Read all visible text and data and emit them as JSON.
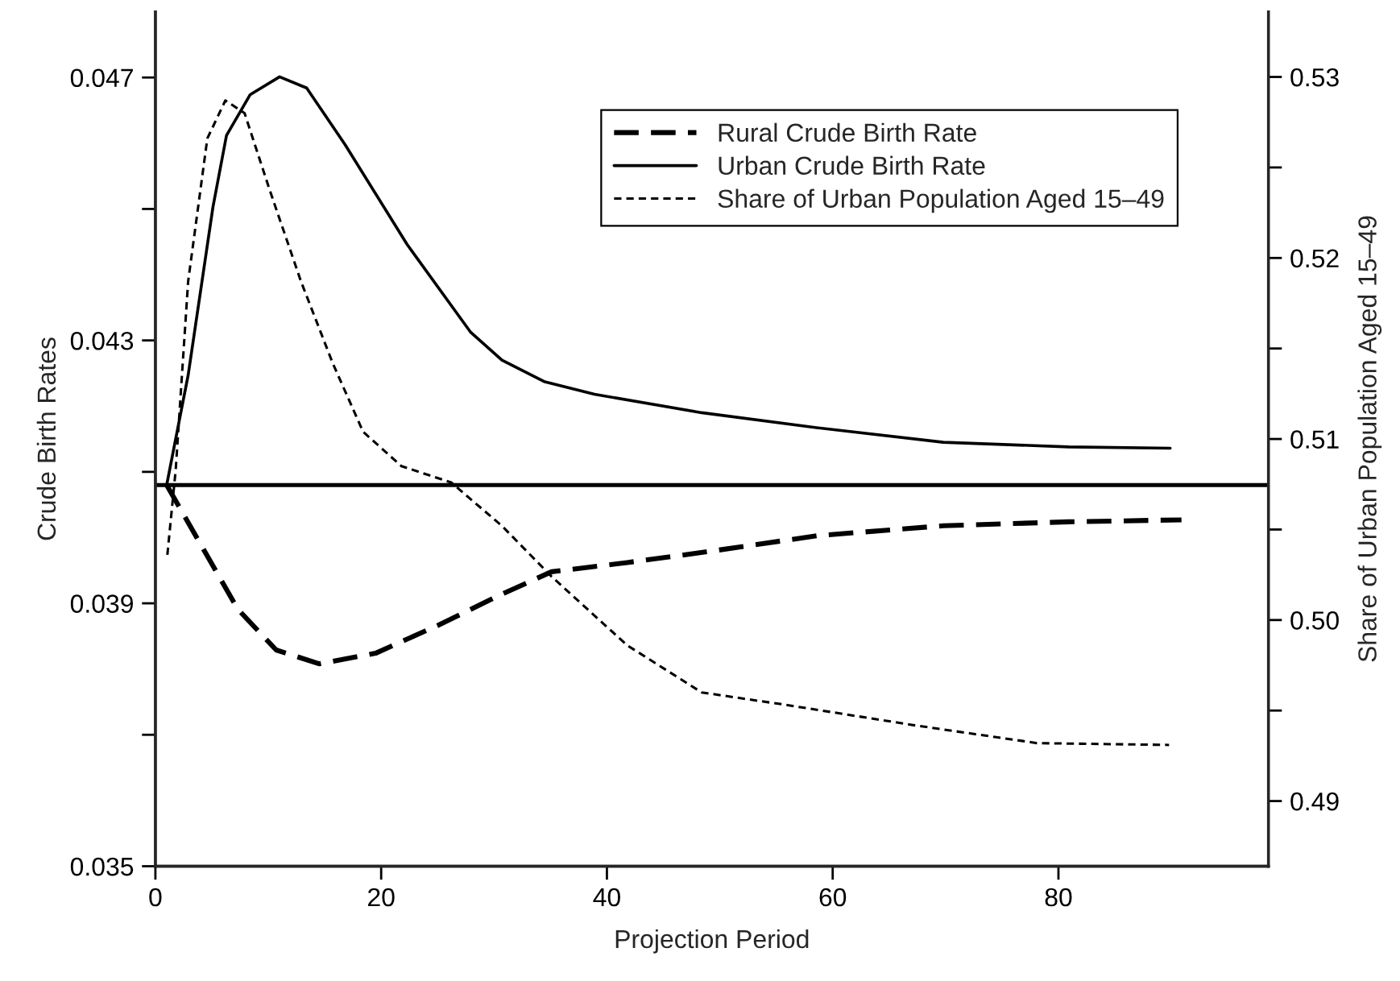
{
  "chart_data": {
    "type": "line",
    "xlabel": "Projection Period",
    "ylabel": "Crude Birth Rates",
    "y2label": "Share of Urban Population Aged 15–49",
    "xlim": [
      0,
      98.6
    ],
    "xticks": [
      0,
      20,
      40,
      60,
      80
    ],
    "ylim": [
      0.035,
      0.048
    ],
    "yticks": [
      0.035,
      {
        "value": 0.037,
        "label": null
      },
      0.039,
      {
        "value": 0.041,
        "label": null
      },
      0.043,
      {
        "value": 0.045,
        "label": null
      },
      0.047
    ],
    "y2lim": [
      0.4864,
      0.5336
    ],
    "y2ticks": [
      0.49,
      {
        "value": 0.495,
        "label": null
      },
      {
        "value": 0.5,
        "label": "0.50"
      },
      {
        "value": 0.505,
        "label": null
      },
      0.51,
      {
        "value": 0.515,
        "label": null
      },
      0.52,
      {
        "value": 0.525,
        "label": null
      },
      0.53
    ],
    "legend": "top right",
    "grid": false,
    "ref_lines": [
      {
        "axis": "y",
        "value": 0.0408,
        "color": "#000000",
        "line_style": "solid"
      }
    ],
    "series": [
      {
        "name": "Rural Crude Birth Rate",
        "color": "#000000",
        "line_style": "dashed",
        "axis": "y",
        "x": [
          1,
          4.0,
          7.3,
          10.7,
          14.5,
          19.5,
          25.1,
          30.7,
          35.1,
          41.8,
          49.1,
          58.7,
          69.8,
          80.9,
          90.9
        ],
        "values": [
          0.0408,
          0.0399,
          0.03891,
          0.03829,
          0.03808,
          0.03824,
          0.03867,
          0.03914,
          0.03948,
          0.03962,
          0.03979,
          0.04003,
          0.04018,
          0.04024,
          0.04027
        ]
      },
      {
        "name": "Urban Crude Birth Rate",
        "color": "#000000",
        "line_style": "solid",
        "axis": "y",
        "x": [
          1,
          2.9,
          5.1,
          6.3,
          8.4,
          11.0,
          13.4,
          16.8,
          22.3,
          27.9,
          30.7,
          34.5,
          38.9,
          48.4,
          58.7,
          69.8,
          80.9,
          89.9
        ],
        "values": [
          0.0408,
          0.04247,
          0.04503,
          0.04612,
          0.04674,
          0.04701,
          0.04684,
          0.04598,
          0.04446,
          0.04313,
          0.0427,
          0.04237,
          0.04218,
          0.0419,
          0.04167,
          0.04145,
          0.04138,
          0.04136
        ]
      },
      {
        "name": "Share of Urban Population Aged 15–49",
        "color": "#000000",
        "line_style": "dotted",
        "axis": "y2",
        "x": [
          1.06,
          1.8,
          2.9,
          4.6,
          6.2,
          7.9,
          10.1,
          12.9,
          15.7,
          18.4,
          21.8,
          26.2,
          30.7,
          35.1,
          41.8,
          48.4,
          56,
          67.1,
          78.1,
          89.8
        ],
        "values": [
          0.5036,
          0.5083,
          0.5187,
          0.5266,
          0.5287,
          0.528,
          0.5238,
          0.5187,
          0.5142,
          0.5104,
          0.5085,
          0.5076,
          0.5052,
          0.5024,
          0.4986,
          0.496,
          0.4953,
          0.4942,
          0.4932,
          0.4931
        ]
      }
    ]
  }
}
